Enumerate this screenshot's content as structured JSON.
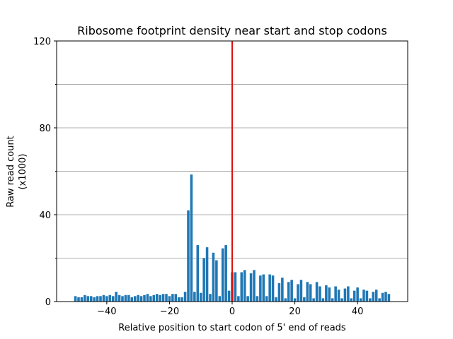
{
  "chart_data": {
    "type": "bar",
    "title": "Ribosome footprint density near start and stop codons",
    "xlabel": "Relative position to start codon of 5' end of reads",
    "ylabel_lines": [
      "Raw read count",
      "(x1000)"
    ],
    "xlim": [
      -56,
      56
    ],
    "ylim": [
      0,
      120
    ],
    "x_ticks": [
      -40,
      -20,
      0,
      20,
      40
    ],
    "x_tick_labels": [
      "−40",
      "−20",
      "0",
      "20",
      "40"
    ],
    "y_ticks_major": [
      0,
      40,
      80,
      120
    ],
    "y_ticks_minor": [
      20,
      60,
      100
    ],
    "y_tick_labels": [
      "0",
      "40",
      "80",
      "120"
    ],
    "grid": "horizontal",
    "bar_color": "#1f77b4",
    "marker_line": {
      "x": 0,
      "color": "#dd1111"
    },
    "x": [
      -50,
      -49,
      -48,
      -47,
      -46,
      -45,
      -44,
      -43,
      -42,
      -41,
      -40,
      -39,
      -38,
      -37,
      -36,
      -35,
      -34,
      -33,
      -32,
      -31,
      -30,
      -29,
      -28,
      -27,
      -26,
      -25,
      -24,
      -23,
      -22,
      -21,
      -20,
      -19,
      -18,
      -17,
      -16,
      -15,
      -14,
      -13,
      -12,
      -11,
      -10,
      -9,
      -8,
      -7,
      -6,
      -5,
      -4,
      -3,
      -2,
      -1,
      0,
      1,
      2,
      3,
      4,
      5,
      6,
      7,
      8,
      9,
      10,
      11,
      12,
      13,
      14,
      15,
      16,
      17,
      18,
      19,
      20,
      21,
      22,
      23,
      24,
      25,
      26,
      27,
      28,
      29,
      30,
      31,
      32,
      33,
      34,
      35,
      36,
      37,
      38,
      39,
      40,
      41,
      42,
      43,
      44,
      45,
      46,
      47,
      48,
      49,
      50
    ],
    "values": [
      2.5,
      2,
      2,
      3,
      2.5,
      2.5,
      2,
      2.5,
      2.5,
      3,
      2.5,
      3,
      2.5,
      4.5,
      3,
      2.5,
      3,
      3,
      2,
      2.5,
      3,
      2.5,
      3,
      3.5,
      2.5,
      3,
      3.5,
      3,
      3.5,
      3.5,
      2.5,
      3.5,
      3.5,
      2,
      2,
      4.5,
      42,
      58.5,
      4.5,
      26,
      4,
      20,
      25,
      3.5,
      22.5,
      19,
      2.5,
      24.5,
      26,
      5,
      13.5,
      13.5,
      2.5,
      13.5,
      14.5,
      2.5,
      13,
      14.5,
      2.5,
      12,
      12.5,
      2.5,
      12.5,
      12,
      2,
      8.5,
      11,
      1.5,
      9,
      10,
      1.5,
      8,
      10,
      2,
      9,
      8,
      1.5,
      9,
      7,
      1.5,
      7.5,
      6.5,
      1.5,
      7,
      5.5,
      1.5,
      6,
      7,
      1.5,
      5,
      6.5,
      1.5,
      5.5,
      5,
      1.5,
      4.5,
      5.5,
      1.5,
      4,
      4.5,
      3.5
    ]
  }
}
